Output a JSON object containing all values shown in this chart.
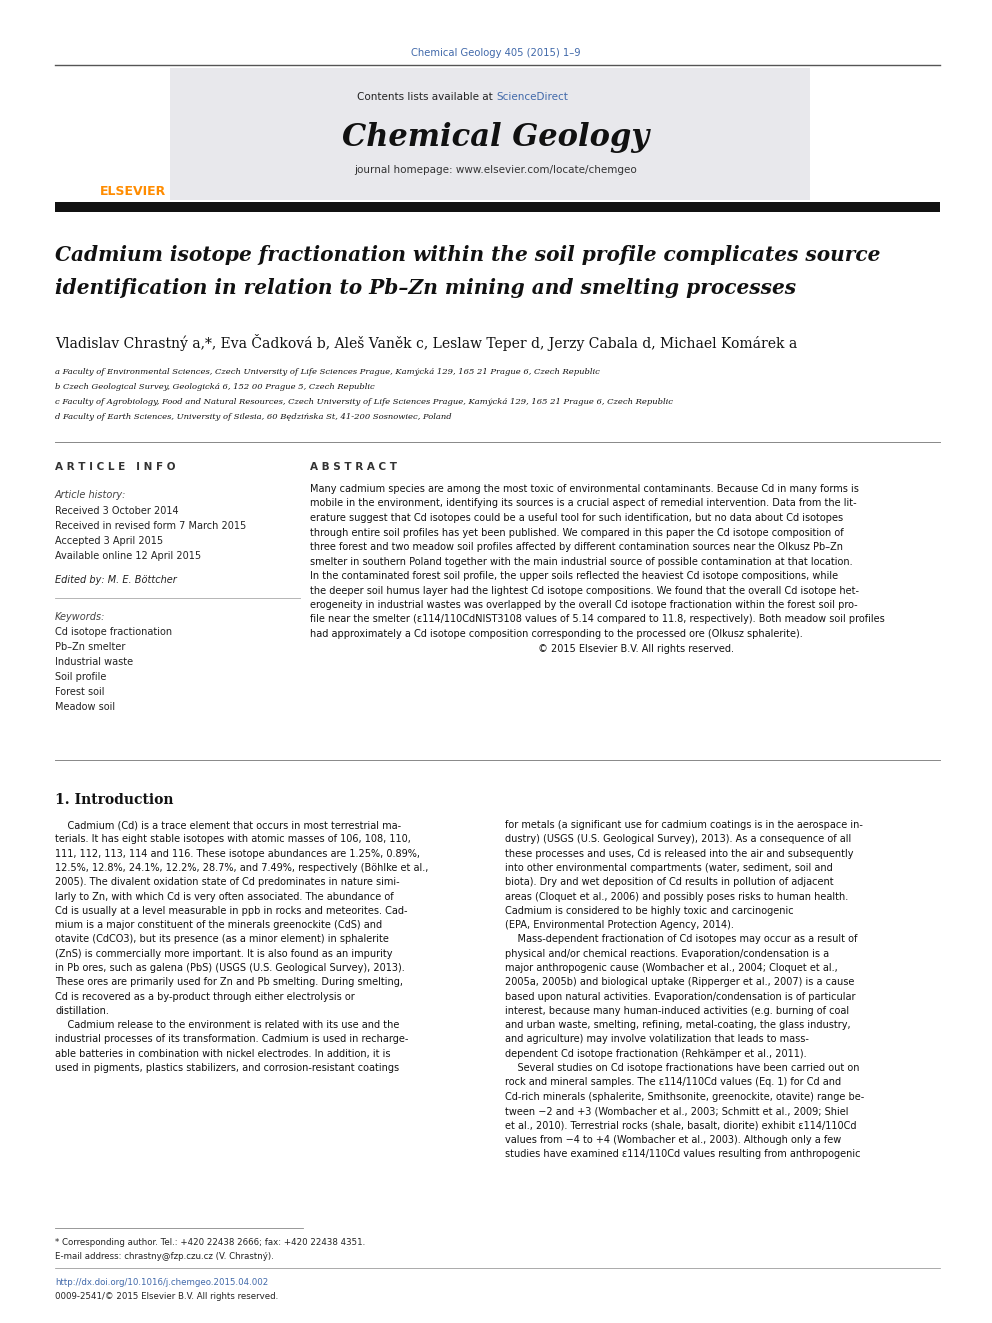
{
  "page_width": 9.92,
  "page_height": 13.23,
  "background": "#ffffff",
  "journal_ref": "Chemical Geology 405 (2015) 1–9",
  "journal_ref_color": "#4169aa",
  "contents_text": "Contents lists available at ",
  "sciencedirect_text": "ScienceDirect",
  "sciencedirect_color": "#4169aa",
  "journal_name": "Chemical Geology",
  "journal_homepage": "journal homepage: www.elsevier.com/locate/chemgeo",
  "header_bg": "#e8e8ec",
  "title_line1": "Cadmium isotope fractionation within the soil profile complicates source",
  "title_line2": "identification in relation to Pb–Zn mining and smelting processes",
  "authors_line": "Vladislav Chrastný a,*, Eva Čadková b, Aleš Vaněk c, Leslaw Teper d, Jerzy Cabala d, Michael Komárek a",
  "affil_a": "a Faculty of Environmental Sciences, Czech University of Life Sciences Prague, Kamýcká 129, 165 21 Prague 6, Czech Republic",
  "affil_b": "b Czech Geological Survey, Geologická 6, 152 00 Prague 5, Czech Republic",
  "affil_c": "c Faculty of Agrobiology, Food and Natural Resources, Czech University of Life Sciences Prague, Kamýcká 129, 165 21 Prague 6, Czech Republic",
  "affil_d": "d Faculty of Earth Sciences, University of Silesia, 60 Będzińska St, 41-200 Sosnowiec, Poland",
  "article_info_label": "A R T I C L E   I N F O",
  "abstract_label": "A B S T R A C T",
  "article_history_label": "Article history:",
  "received": "Received 3 October 2014",
  "revised": "Received in revised form 7 March 2015",
  "accepted": "Accepted 3 April 2015",
  "online": "Available online 12 April 2015",
  "edited_by": "Edited by: M. E. Böttcher",
  "keywords_label": "Keywords:",
  "keywords": [
    "Cd isotope fractionation",
    "Pb–Zn smelter",
    "Industrial waste",
    "Soil profile",
    "Forest soil",
    "Meadow soil"
  ],
  "abstract_lines": [
    "Many cadmium species are among the most toxic of environmental contaminants. Because Cd in many forms is",
    "mobile in the environment, identifying its sources is a crucial aspect of remedial intervention. Data from the lit-",
    "erature suggest that Cd isotopes could be a useful tool for such identification, but no data about Cd isotopes",
    "through entire soil profiles has yet been published. We compared in this paper the Cd isotope composition of",
    "three forest and two meadow soil profiles affected by different contamination sources near the Olkusz Pb–Zn",
    "smelter in southern Poland together with the main industrial source of possible contamination at that location.",
    "In the contaminated forest soil profile, the upper soils reflected the heaviest Cd isotope compositions, while",
    "the deeper soil humus layer had the lightest Cd isotope compositions. We found that the overall Cd isotope het-",
    "erogeneity in industrial wastes was overlapped by the overall Cd isotope fractionation within the forest soil pro-",
    "file near the smelter (ε114/110CdNIST3108 values of 5.14 compared to 11.8, respectively). Both meadow soil profiles",
    "had approximately a Cd isotope composition corresponding to the processed ore (Olkusz sphalerite).",
    "                                                                         © 2015 Elsevier B.V. All rights reserved."
  ],
  "intro_heading": "1. Introduction",
  "intro_col1_lines": [
    "    Cadmium (Cd) is a trace element that occurs in most terrestrial ma-",
    "terials. It has eight stable isotopes with atomic masses of 106, 108, 110,",
    "111, 112, 113, 114 and 116. These isotope abundances are 1.25%, 0.89%,",
    "12.5%, 12.8%, 24.1%, 12.2%, 28.7%, and 7.49%, respectively (Böhlke et al.,",
    "2005). The divalent oxidation state of Cd predominates in nature simi-",
    "larly to Zn, with which Cd is very often associated. The abundance of",
    "Cd is usually at a level measurable in ppb in rocks and meteorites. Cad-",
    "mium is a major constituent of the minerals greenockite (CdS) and",
    "otavite (CdCO3), but its presence (as a minor element) in sphalerite",
    "(ZnS) is commercially more important. It is also found as an impurity",
    "in Pb ores, such as galena (PbS) (USGS (U.S. Geological Survey), 2013).",
    "These ores are primarily used for Zn and Pb smelting. During smelting,",
    "Cd is recovered as a by-product through either electrolysis or",
    "distillation.",
    "    Cadmium release to the environment is related with its use and the",
    "industrial processes of its transformation. Cadmium is used in recharge-",
    "able batteries in combination with nickel electrodes. In addition, it is",
    "used in pigments, plastics stabilizers, and corrosion-resistant coatings"
  ],
  "intro_col2_lines": [
    "for metals (a significant use for cadmium coatings is in the aerospace in-",
    "dustry) (USGS (U.S. Geological Survey), 2013). As a consequence of all",
    "these processes and uses, Cd is released into the air and subsequently",
    "into other environmental compartments (water, sediment, soil and",
    "biota). Dry and wet deposition of Cd results in pollution of adjacent",
    "areas (Cloquet et al., 2006) and possibly poses risks to human health.",
    "Cadmium is considered to be highly toxic and carcinogenic",
    "(EPA, Environmental Protection Agency, 2014).",
    "    Mass-dependent fractionation of Cd isotopes may occur as a result of",
    "physical and/or chemical reactions. Evaporation/condensation is a",
    "major anthropogenic cause (Wombacher et al., 2004; Cloquet et al.,",
    "2005a, 2005b) and biological uptake (Ripperger et al., 2007) is a cause",
    "based upon natural activities. Evaporation/condensation is of particular",
    "interest, because many human-induced activities (e.g. burning of coal",
    "and urban waste, smelting, refining, metal-coating, the glass industry,",
    "and agriculture) may involve volatilization that leads to mass-",
    "dependent Cd isotope fractionation (Rehkämper et al., 2011).",
    "    Several studies on Cd isotope fractionations have been carried out on",
    "rock and mineral samples. The ε114/110Cd values (Eq. 1) for Cd and",
    "Cd-rich minerals (sphalerite, Smithsonite, greenockite, otavite) range be-",
    "tween −2 and +3 (Wombacher et al., 2003; Schmitt et al., 2009; Shiel",
    "et al., 2010). Terrestrial rocks (shale, basalt, diorite) exhibit ε114/110Cd",
    "values from −4 to +4 (Wombacher et al., 2003). Although only a few",
    "studies have examined ε114/110Cd values resulting from anthropogenic"
  ],
  "footnote_star": "* Corresponding author. Tel.: +420 22438 2666; fax: +420 22438 4351.",
  "footnote_email": "E-mail address: chrastny@fzp.czu.cz (V. Chrastný).",
  "doi_text": "http://dx.doi.org/10.1016/j.chemgeo.2015.04.002",
  "issn_text": "0009-2541/© 2015 Elsevier B.V. All rights reserved.",
  "link_color": "#4169aa",
  "elsevier_color": "#FF8C00"
}
